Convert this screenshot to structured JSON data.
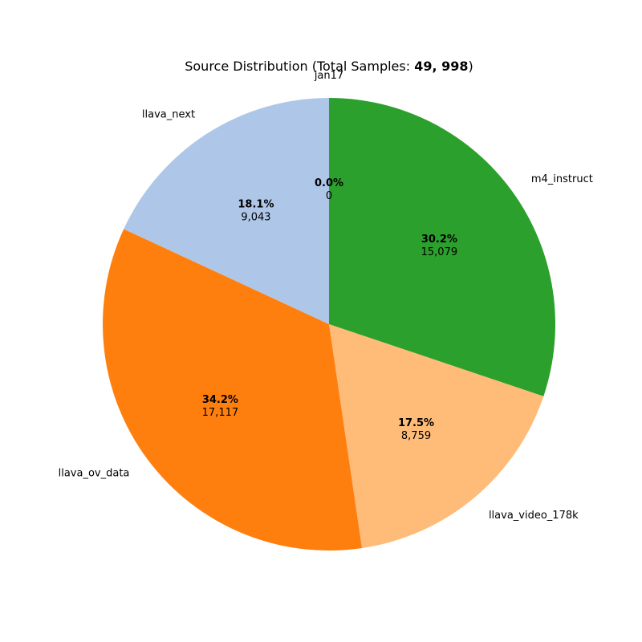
{
  "chart_data": {
    "type": "pie",
    "title_prefix": "Source Distribution (Total Samples: ",
    "title_total": "49, 998",
    "title_suffix": ")",
    "start_angle_deg": 90,
    "direction": "clockwise",
    "slices": [
      {
        "label": "jan17",
        "value": 0,
        "percent_label": "0.0%",
        "count_label": "0",
        "color": "#1f77b4"
      },
      {
        "label": "m4_instruct",
        "value": 15079,
        "percent_label": "30.2%",
        "count_label": "15,079",
        "color": "#2ca02c"
      },
      {
        "label": "llava_video_178k",
        "value": 8759,
        "percent_label": "17.5%",
        "count_label": "8,759",
        "color": "#ffbb78"
      },
      {
        "label": "llava_ov_data",
        "value": 17117,
        "percent_label": "34.2%",
        "count_label": "17,117",
        "color": "#ff7f0e"
      },
      {
        "label": "llava_next",
        "value": 9043,
        "percent_label": "18.1%",
        "count_label": "9,043",
        "color": "#aec7e8"
      }
    ]
  }
}
